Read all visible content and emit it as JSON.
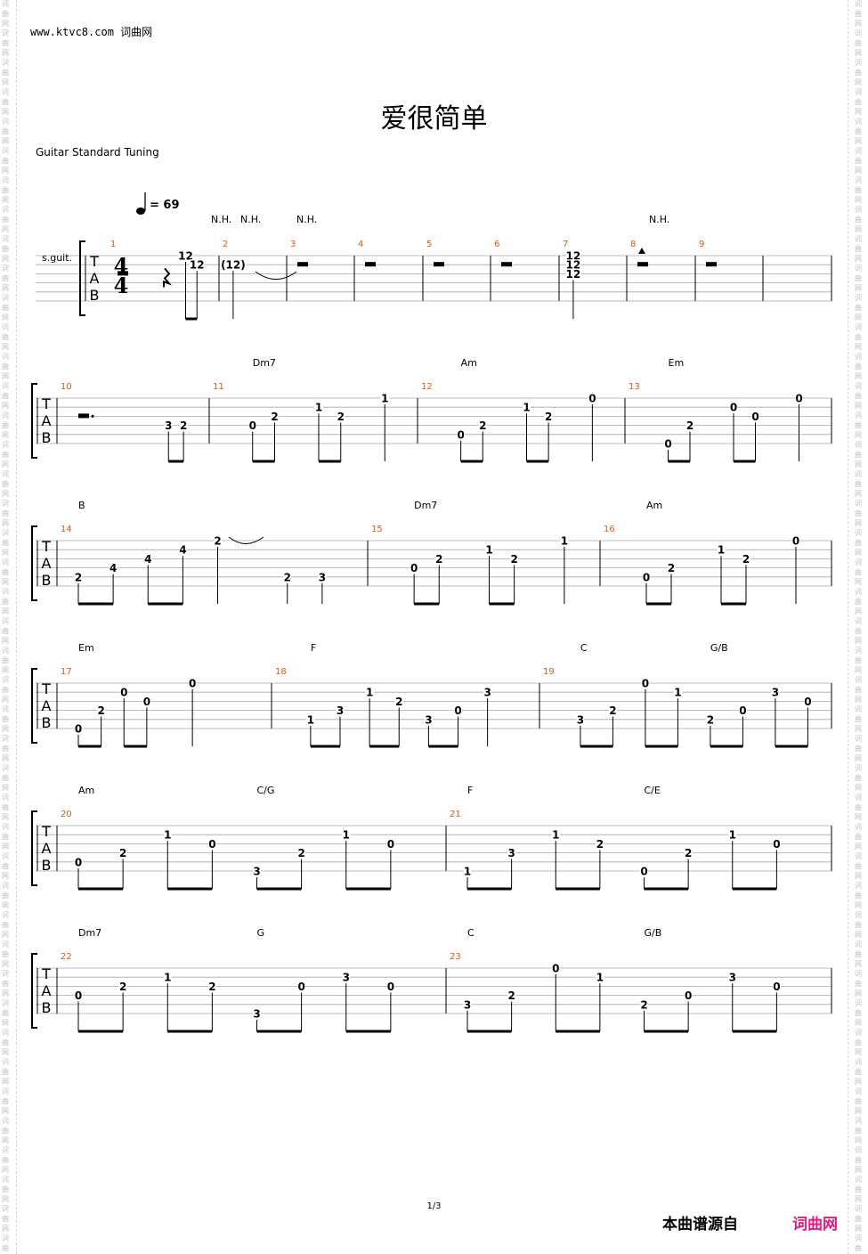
{
  "header": {
    "site": "www.ktvc8.com 词曲网",
    "title": "爱很简单",
    "tuning": "Guitar Standard Tuning"
  },
  "watermark": {
    "glyphs": [
      "词",
      "曲",
      "网"
    ]
  },
  "tempo": {
    "bpm": "69",
    "text": "= 69"
  },
  "instrument": "s.guit.",
  "time_signature": {
    "top": "4",
    "bottom": "4"
  },
  "tab_clef": [
    "T",
    "A",
    "B"
  ],
  "harmonic_marks": [
    "N.H.",
    "N.H.",
    "N.H.",
    "N.H."
  ],
  "systems": [
    {
      "bars": [
        {
          "number": "1",
          "chords": [],
          "notes": [
            {
              "beat": 0,
              "string": 2,
              "fret": "rest-half"
            },
            {
              "beat": 2,
              "string": 2,
              "fret": "rest-quarter"
            },
            {
              "beat": 3,
              "string": 0,
              "fret": "12"
            },
            {
              "beat": 3.5,
              "string": 1,
              "fret": "12"
            }
          ]
        },
        {
          "number": "2",
          "chords": [],
          "notes": [
            {
              "beat": 0.3,
              "string": 1,
              "fret": "(12)"
            }
          ]
        },
        {
          "number": "3",
          "chords": [],
          "notes": [
            {
              "beat": 0,
              "string": 1,
              "fret": "rest-whole"
            }
          ]
        },
        {
          "number": "4",
          "chords": [],
          "notes": [
            {
              "beat": 0,
              "string": 1,
              "fret": "rest-whole"
            }
          ]
        },
        {
          "number": "5",
          "chords": [],
          "notes": [
            {
              "beat": 0,
              "string": 1,
              "fret": "rest-whole"
            }
          ]
        },
        {
          "number": "6",
          "chords": [],
          "notes": [
            {
              "beat": 0,
              "string": 1,
              "fret": "rest-whole"
            }
          ]
        },
        {
          "number": "7",
          "chords": [],
          "notes": [
            {
              "beat": 0.3,
              "string": 0,
              "fret": "12"
            },
            {
              "beat": 0.3,
              "string": 1,
              "fret": "12"
            },
            {
              "beat": 0.3,
              "string": 2,
              "fret": "12"
            }
          ]
        },
        {
          "number": "8",
          "chords": [],
          "notes": [
            {
              "beat": 0,
              "string": 1,
              "fret": "rest-whole"
            }
          ]
        },
        {
          "number": "9",
          "chords": [],
          "notes": [
            {
              "beat": 0,
              "string": 1,
              "fret": "rest-whole"
            }
          ]
        }
      ]
    },
    {
      "bars": [
        {
          "number": "10",
          "chords": [],
          "notes": [
            {
              "beat": 0,
              "string": 2,
              "fret": "rest-dotted-half"
            },
            {
              "beat": 3,
              "string": 3,
              "fret": "3"
            },
            {
              "beat": 3.5,
              "string": 3,
              "fret": "2"
            }
          ]
        },
        {
          "number": "11",
          "chords": [
            {
              "beat": 0.5,
              "name": "Dm7"
            }
          ],
          "notes": [
            {
              "beat": 0.5,
              "string": 3,
              "fret": "0"
            },
            {
              "beat": 1,
              "string": 2,
              "fret": "2"
            },
            {
              "beat": 2,
              "string": 1,
              "fret": "1"
            },
            {
              "beat": 2.5,
              "string": 2,
              "fret": "2"
            },
            {
              "beat": 3.5,
              "string": 0,
              "fret": "1"
            }
          ]
        },
        {
          "number": "12",
          "chords": [
            {
              "beat": 0.5,
              "name": "Am"
            }
          ],
          "notes": [
            {
              "beat": 0.5,
              "string": 4,
              "fret": "0"
            },
            {
              "beat": 1,
              "string": 3,
              "fret": "2"
            },
            {
              "beat": 2,
              "string": 1,
              "fret": "1"
            },
            {
              "beat": 2.5,
              "string": 2,
              "fret": "2"
            },
            {
              "beat": 3.5,
              "string": 0,
              "fret": "0"
            }
          ]
        },
        {
          "number": "13",
          "chords": [
            {
              "beat": 0.5,
              "name": "Em"
            }
          ],
          "notes": [
            {
              "beat": 0.5,
              "string": 5,
              "fret": "0"
            },
            {
              "beat": 1,
              "string": 3,
              "fret": "2"
            },
            {
              "beat": 2,
              "string": 1,
              "fret": "0"
            },
            {
              "beat": 2.5,
              "string": 2,
              "fret": "0"
            },
            {
              "beat": 3.5,
              "string": 0,
              "fret": "0"
            }
          ]
        }
      ]
    },
    {
      "bars": [
        {
          "number": "14",
          "chords": [
            {
              "beat": 0,
              "name": "B"
            }
          ],
          "notes": [
            {
              "beat": 0,
              "string": 4,
              "fret": "2"
            },
            {
              "beat": 0.5,
              "string": 3,
              "fret": "4"
            },
            {
              "beat": 1,
              "string": 2,
              "fret": "4"
            },
            {
              "beat": 1.5,
              "string": 1,
              "fret": "4"
            },
            {
              "beat": 2,
              "string": 0,
              "fret": "2"
            },
            {
              "beat": 3,
              "string": 4,
              "fret": "2"
            },
            {
              "beat": 3.5,
              "string": 4,
              "fret": "3"
            }
          ]
        },
        {
          "number": "15",
          "chords": [
            {
              "beat": 0.5,
              "name": "Dm7"
            }
          ],
          "notes": [
            {
              "beat": 0.5,
              "string": 3,
              "fret": "0"
            },
            {
              "beat": 1,
              "string": 2,
              "fret": "2"
            },
            {
              "beat": 2,
              "string": 1,
              "fret": "1"
            },
            {
              "beat": 2.5,
              "string": 2,
              "fret": "2"
            },
            {
              "beat": 3.5,
              "string": 0,
              "fret": "1"
            }
          ]
        },
        {
          "number": "16",
          "chords": [
            {
              "beat": 0.5,
              "name": "Am"
            }
          ],
          "notes": [
            {
              "beat": 0.5,
              "string": 4,
              "fret": "0"
            },
            {
              "beat": 1,
              "string": 3,
              "fret": "2"
            },
            {
              "beat": 2,
              "string": 1,
              "fret": "1"
            },
            {
              "beat": 2.5,
              "string": 2,
              "fret": "2"
            },
            {
              "beat": 3.5,
              "string": 0,
              "fret": "0"
            }
          ]
        }
      ]
    },
    {
      "bars": [
        {
          "number": "17",
          "chords": [
            {
              "beat": 0,
              "name": "Em"
            }
          ],
          "notes": [
            {
              "beat": 0,
              "string": 5,
              "fret": "0"
            },
            {
              "beat": 0.5,
              "string": 3,
              "fret": "2"
            },
            {
              "beat": 1,
              "string": 1,
              "fret": "0"
            },
            {
              "beat": 1.5,
              "string": 2,
              "fret": "0"
            },
            {
              "beat": 2.5,
              "string": 0,
              "fret": "0"
            }
          ]
        },
        {
          "number": "18",
          "chords": [
            {
              "beat": 0.3,
              "name": "F"
            }
          ],
          "notes": [
            {
              "beat": 0.3,
              "string": 4,
              "fret": "1"
            },
            {
              "beat": 0.8,
              "string": 3,
              "fret": "3"
            },
            {
              "beat": 1.3,
              "string": 1,
              "fret": "1"
            },
            {
              "beat": 1.8,
              "string": 2,
              "fret": "2"
            },
            {
              "beat": 2.3,
              "string": 4,
              "fret": "3"
            },
            {
              "beat": 2.8,
              "string": 3,
              "fret": "0"
            },
            {
              "beat": 3.3,
              "string": 1,
              "fret": "3"
            }
          ]
        },
        {
          "number": "19",
          "chords": [
            {
              "beat": 0.3,
              "name": "C"
            },
            {
              "beat": 2.3,
              "name": "G/B"
            }
          ],
          "notes": [
            {
              "beat": 0.3,
              "string": 4,
              "fret": "3"
            },
            {
              "beat": 0.8,
              "string": 3,
              "fret": "2"
            },
            {
              "beat": 1.3,
              "string": 0,
              "fret": "0"
            },
            {
              "beat": 1.8,
              "string": 1,
              "fret": "1"
            },
            {
              "beat": 2.3,
              "string": 4,
              "fret": "2"
            },
            {
              "beat": 2.8,
              "string": 3,
              "fret": "0"
            },
            {
              "beat": 3.3,
              "string": 1,
              "fret": "3"
            },
            {
              "beat": 3.8,
              "string": 2,
              "fret": "0"
            }
          ]
        }
      ]
    },
    {
      "bars": [
        {
          "number": "20",
          "chords": [
            {
              "beat": 0,
              "name": "Am"
            },
            {
              "beat": 2,
              "name": "C/G"
            }
          ],
          "notes": [
            {
              "beat": 0,
              "string": 4,
              "fret": "0"
            },
            {
              "beat": 0.5,
              "string": 3,
              "fret": "2"
            },
            {
              "beat": 1,
              "string": 1,
              "fret": "1"
            },
            {
              "beat": 1.5,
              "string": 2,
              "fret": "0"
            },
            {
              "beat": 2,
              "string": 5,
              "fret": "3"
            },
            {
              "beat": 2.5,
              "string": 3,
              "fret": "2"
            },
            {
              "beat": 3,
              "string": 1,
              "fret": "1"
            },
            {
              "beat": 3.5,
              "string": 2,
              "fret": "0"
            }
          ]
        },
        {
          "number": "21",
          "chords": [
            {
              "beat": 0,
              "name": "F"
            },
            {
              "beat": 2,
              "name": "C/E"
            }
          ],
          "notes": [
            {
              "beat": 0,
              "string": 5,
              "fret": "1"
            },
            {
              "beat": 0.5,
              "string": 3,
              "fret": "3"
            },
            {
              "beat": 1,
              "string": 1,
              "fret": "1"
            },
            {
              "beat": 1.5,
              "string": 2,
              "fret": "2"
            },
            {
              "beat": 2,
              "string": 5,
              "fret": "0"
            },
            {
              "beat": 2.5,
              "string": 3,
              "fret": "2"
            },
            {
              "beat": 3,
              "string": 1,
              "fret": "1"
            },
            {
              "beat": 3.5,
              "string": 2,
              "fret": "0"
            }
          ]
        }
      ]
    },
    {
      "bars": [
        {
          "number": "22",
          "chords": [
            {
              "beat": 0,
              "name": "Dm7"
            },
            {
              "beat": 2,
              "name": "G"
            }
          ],
          "notes": [
            {
              "beat": 0,
              "string": 3,
              "fret": "0"
            },
            {
              "beat": 0.5,
              "string": 2,
              "fret": "2"
            },
            {
              "beat": 1,
              "string": 1,
              "fret": "1"
            },
            {
              "beat": 1.5,
              "string": 2,
              "fret": "2"
            },
            {
              "beat": 2,
              "string": 5,
              "fret": "3"
            },
            {
              "beat": 2.5,
              "string": 2,
              "fret": "0"
            },
            {
              "beat": 3,
              "string": 1,
              "fret": "3"
            },
            {
              "beat": 3.5,
              "string": 2,
              "fret": "0"
            }
          ]
        },
        {
          "number": "23",
          "chords": [
            {
              "beat": 0,
              "name": "C"
            },
            {
              "beat": 2,
              "name": "G/B"
            }
          ],
          "notes": [
            {
              "beat": 0,
              "string": 4,
              "fret": "3"
            },
            {
              "beat": 0.5,
              "string": 3,
              "fret": "2"
            },
            {
              "beat": 1,
              "string": 0,
              "fret": "0"
            },
            {
              "beat": 1.5,
              "string": 1,
              "fret": "1"
            },
            {
              "beat": 2,
              "string": 4,
              "fret": "2"
            },
            {
              "beat": 2.5,
              "string": 3,
              "fret": "0"
            },
            {
              "beat": 3,
              "string": 1,
              "fret": "3"
            },
            {
              "beat": 3.5,
              "string": 2,
              "fret": "0"
            }
          ]
        }
      ]
    }
  ],
  "footer": {
    "page": "1/3",
    "source_label": "本曲谱源自",
    "source_brand": "词曲网"
  },
  "colors": {
    "bar_number": "#e05a1a",
    "brand": "#e8187e",
    "staff_line": "#a8a8a8",
    "watermark": "#c0c0c0"
  }
}
